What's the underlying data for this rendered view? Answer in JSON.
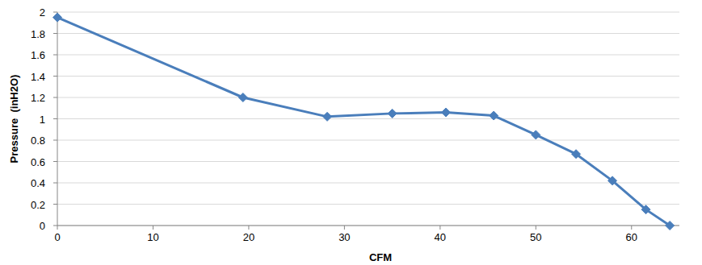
{
  "chart_data": {
    "type": "line",
    "x_label": "CFM",
    "y_label": "Pressure  (inH2O)",
    "x": [
      0,
      19.4,
      28.2,
      35,
      40.6,
      45.6,
      50,
      54.2,
      58,
      61.5,
      64
    ],
    "values": [
      1.95,
      1.2,
      1.02,
      1.05,
      1.06,
      1.03,
      0.85,
      0.67,
      0.42,
      0.15,
      0
    ],
    "color": "#4a7ebb",
    "marker": "diamond",
    "xlim": [
      0,
      65
    ],
    "xticks": [
      0,
      10,
      20,
      30,
      40,
      50,
      60
    ],
    "ylim": [
      0,
      2
    ],
    "yticks": [
      0,
      0.2,
      0.4,
      0.6,
      0.8,
      1,
      1.2,
      1.4,
      1.6,
      1.8,
      2
    ],
    "grid": true
  }
}
